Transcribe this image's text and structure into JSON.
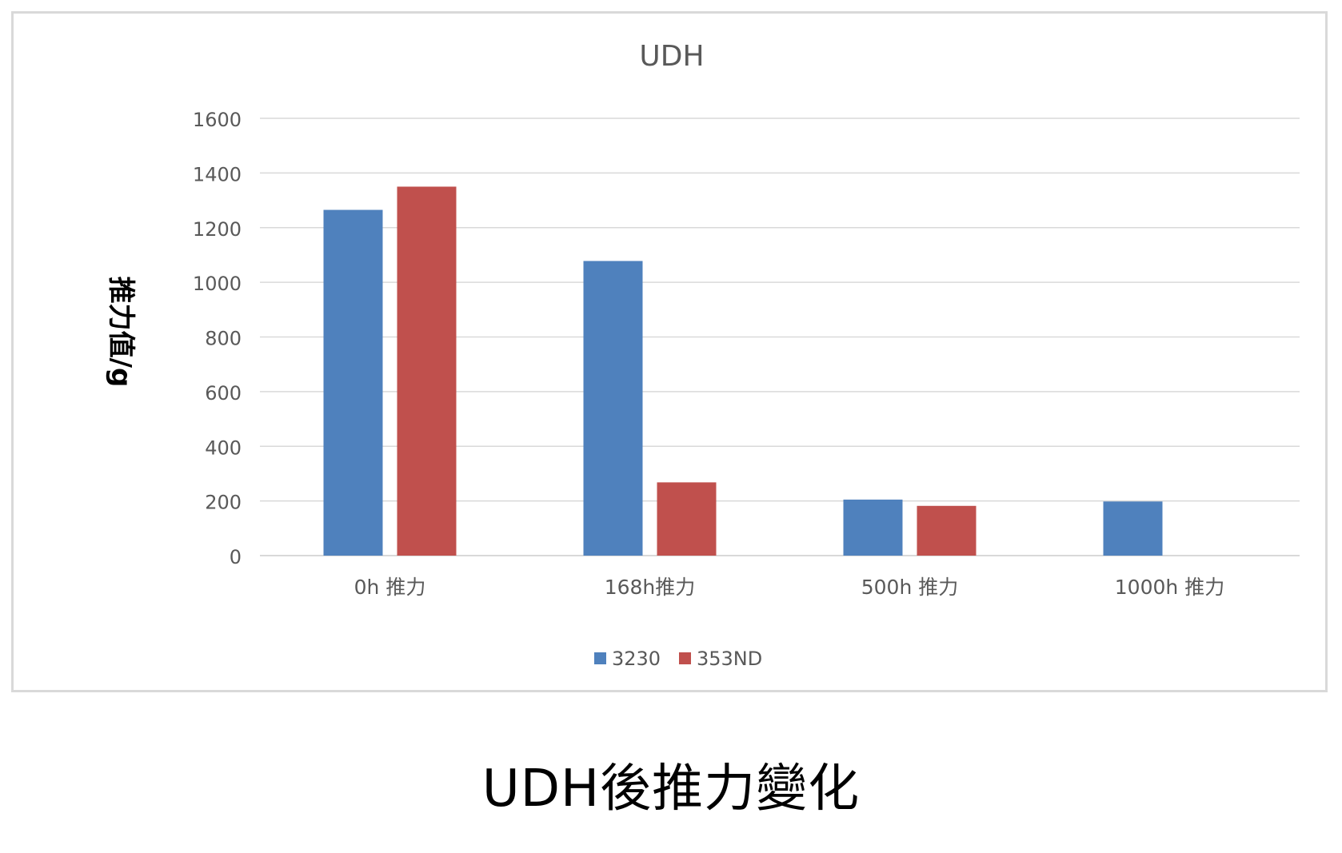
{
  "caption": "UDH後推力變化",
  "colors": {
    "series_3230": "#4f81bd",
    "series_353ND": "#c0504d",
    "gridline": "#d9d9d9",
    "frame_border": "#d9d9d9",
    "axis_text": "#595959"
  },
  "chart_data": {
    "type": "bar",
    "title": "UDH",
    "xlabel": "",
    "ylabel": "推力值/g",
    "categories": [
      "0h 推力",
      "168h推力",
      "500h 推力",
      "1000h 推力"
    ],
    "series": [
      {
        "name": "3230",
        "values": [
          1265,
          1078,
          205,
          198
        ]
      },
      {
        "name": "353ND",
        "values": [
          1350,
          268,
          182,
          null
        ]
      }
    ],
    "ylim": [
      0,
      1600
    ],
    "yticks": [
      "0",
      "200",
      "400",
      "600",
      "800",
      "1000",
      "1200",
      "1400",
      "1600"
    ],
    "grid": true,
    "legend": "bottom"
  }
}
